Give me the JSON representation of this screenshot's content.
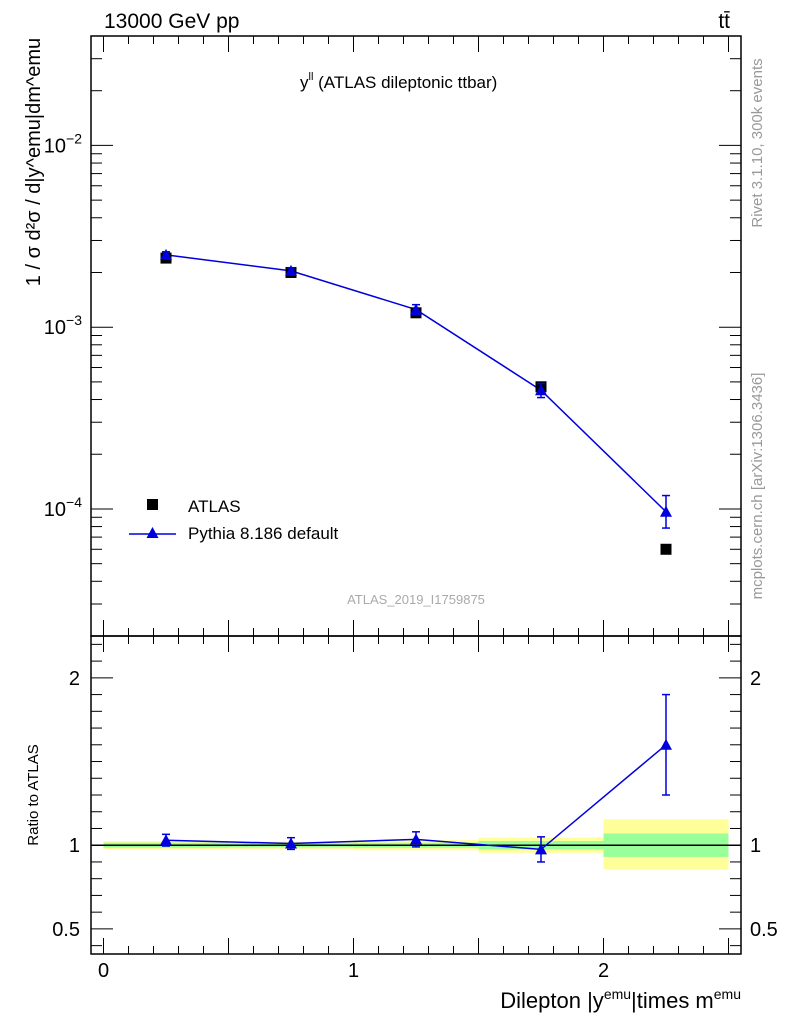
{
  "header": {
    "energy_label": "13000 GeV pp",
    "process_label": "tt̄"
  },
  "side_labels": {
    "rivet": "Rivet 3.1.10,  300k events",
    "mcplots": "mcplots.cern.ch [arXiv:1306.3436]"
  },
  "chart_data": [
    {
      "type": "scatter",
      "panel": "main",
      "title": "y^ll (ATLAS dileptonic ttbar)",
      "title_main": "y",
      "title_sup": "ll",
      "title_rest": " (ATLAS dileptonic ttbar)",
      "watermark": "ATLAS_2019_I1759875",
      "ylabel": "1 / σ  d²σ / d|y^emu|dm^emu",
      "yscale": "log",
      "ylim": [
        2e-05,
        0.04
      ],
      "xlim": [
        -0.05,
        2.55
      ],
      "ytick_labels": [
        {
          "value": 0.0001,
          "base": "10",
          "exp": "−4"
        },
        {
          "value": 0.001,
          "base": "10",
          "exp": "−3"
        },
        {
          "value": 0.01,
          "base": "10",
          "exp": "−2"
        }
      ],
      "legend": [
        {
          "label": "ATLAS",
          "marker": "square",
          "color": "#000000"
        },
        {
          "label": "Pythia 8.186 default",
          "marker": "triangle",
          "color": "#0000dd"
        }
      ],
      "series": [
        {
          "name": "ATLAS",
          "x": [
            0.25,
            0.75,
            1.25,
            1.75,
            2.25
          ],
          "y": [
            0.0024,
            0.002,
            0.0012,
            0.00047,
            6e-05
          ]
        },
        {
          "name": "Pythia 8.186 default",
          "x": [
            0.25,
            0.75,
            1.25,
            1.75,
            2.25
          ],
          "y": [
            0.0025,
            0.00204,
            0.00125,
            0.00045,
            9.65e-05
          ],
          "err_lo": [
            0.0001,
            8e-05,
            8e-05,
            4e-05,
            1.8e-05
          ],
          "err_hi": [
            0.0001,
            8e-05,
            8e-05,
            4e-05,
            2.2e-05
          ]
        }
      ]
    },
    {
      "type": "line",
      "panel": "ratio",
      "ylabel": "Ratio to ATLAS",
      "ylim": [
        0.35,
        2.25
      ],
      "xlim": [
        -0.05,
        2.55
      ],
      "xlabel_main": "Dilepton |y",
      "xlabel_sup1": "emu",
      "xlabel_mid": "|times m",
      "xlabel_sup2": "emu",
      "xtick_labels": [
        {
          "value": 0,
          "label": "0"
        },
        {
          "value": 1,
          "label": "1"
        },
        {
          "value": 2,
          "label": "2"
        }
      ],
      "ytick_labels": [
        {
          "value": 0.5,
          "label": "0.5"
        },
        {
          "value": 1,
          "label": "1"
        },
        {
          "value": 2,
          "label": "2"
        }
      ],
      "bands": [
        {
          "x0": 0,
          "x1": 0.5,
          "yellow": [
            0.975,
            1.025
          ],
          "green": [
            0.985,
            1.015
          ]
        },
        {
          "x0": 0.5,
          "x1": 1.0,
          "yellow": [
            0.978,
            1.022
          ],
          "green": [
            0.988,
            1.012
          ]
        },
        {
          "x0": 1.0,
          "x1": 1.5,
          "yellow": [
            0.97,
            1.03
          ],
          "green": [
            0.985,
            1.015
          ]
        },
        {
          "x0": 1.5,
          "x1": 2.0,
          "yellow": [
            0.955,
            1.045
          ],
          "green": [
            0.975,
            1.025
          ]
        },
        {
          "x0": 2.0,
          "x1": 2.5,
          "yellow": [
            0.855,
            1.155
          ],
          "green": [
            0.93,
            1.07
          ]
        }
      ],
      "series": [
        {
          "name": "Pythia 8.186 default",
          "x": [
            0.25,
            0.75,
            1.25,
            1.75,
            2.25
          ],
          "y": [
            1.03,
            1.01,
            1.035,
            0.975,
            1.6
          ],
          "err_lo": [
            0.035,
            0.035,
            0.045,
            0.075,
            0.3
          ],
          "err_hi": [
            0.035,
            0.035,
            0.045,
            0.075,
            0.3
          ]
        }
      ]
    }
  ]
}
